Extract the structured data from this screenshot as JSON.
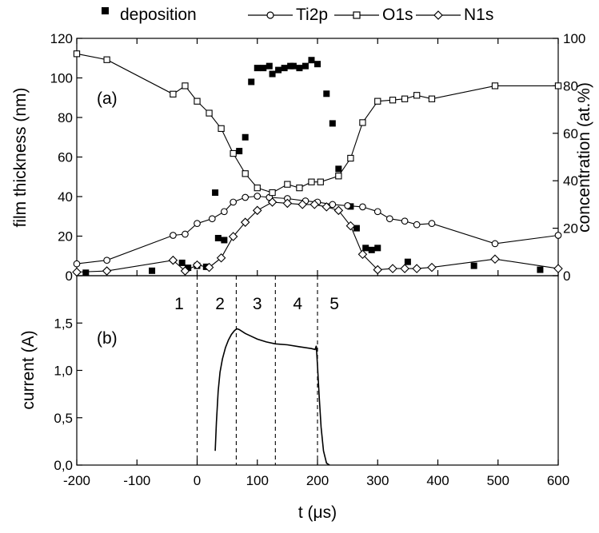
{
  "chart_data": [
    {
      "panel": "(a)",
      "type": "scatter",
      "xlim": [
        -200,
        600
      ],
      "ylim_left": [
        0,
        120
      ],
      "ylim_right": [
        0,
        100
      ],
      "ylabel": "film thickness (nm)",
      "ylabel_right": "concentration (at.%)",
      "left_ticks": [
        0,
        20,
        40,
        60,
        80,
        100,
        120
      ],
      "right_ticks": [
        0,
        20,
        40,
        60,
        80,
        100
      ],
      "legend_position": "top",
      "legend": [
        "deposition",
        "Ti2p",
        "O1s",
        "N1s"
      ],
      "series": [
        {
          "name": "deposition",
          "axis": "left",
          "marker": "square-filled",
          "line": false,
          "points": [
            [
              -185,
              1.5
            ],
            [
              -75,
              2.5
            ],
            [
              -25,
              6.5
            ],
            [
              -15,
              4
            ],
            [
              0,
              5
            ],
            [
              15,
              4.5
            ],
            [
              30,
              42
            ],
            [
              35,
              19
            ],
            [
              45,
              18
            ],
            [
              70,
              63
            ],
            [
              80,
              70
            ],
            [
              90,
              98
            ],
            [
              100,
              105
            ],
            [
              110,
              105
            ],
            [
              120,
              106
            ],
            [
              125,
              102
            ],
            [
              135,
              104
            ],
            [
              145,
              105
            ],
            [
              155,
              106
            ],
            [
              160,
              106
            ],
            [
              170,
              105
            ],
            [
              180,
              106
            ],
            [
              190,
              109
            ],
            [
              200,
              107
            ],
            [
              215,
              92
            ],
            [
              225,
              77
            ],
            [
              235,
              54
            ],
            [
              255,
              35
            ],
            [
              265,
              24
            ],
            [
              280,
              14
            ],
            [
              290,
              13
            ],
            [
              300,
              14
            ],
            [
              350,
              7
            ],
            [
              460,
              5
            ],
            [
              570,
              3
            ]
          ]
        },
        {
          "name": "Ti2p",
          "axis": "right",
          "marker": "circle-open",
          "line": true,
          "points": [
            [
              -200,
              5
            ],
            [
              -150,
              6.5
            ],
            [
              -40,
              17
            ],
            [
              -20,
              17.5
            ],
            [
              0,
              22
            ],
            [
              25,
              24
            ],
            [
              45,
              27
            ],
            [
              60,
              31
            ],
            [
              80,
              33
            ],
            [
              100,
              33.5
            ],
            [
              120,
              33
            ],
            [
              150,
              32.5
            ],
            [
              180,
              31.5
            ],
            [
              200,
              31
            ],
            [
              225,
              30
            ],
            [
              250,
              29.5
            ],
            [
              275,
              29
            ],
            [
              300,
              27
            ],
            [
              320,
              24
            ],
            [
              345,
              23
            ],
            [
              365,
              21.5
            ],
            [
              390,
              22
            ],
            [
              495,
              13.5
            ],
            [
              600,
              17
            ]
          ]
        },
        {
          "name": "O1s",
          "axis": "right",
          "marker": "square-open",
          "line": true,
          "points": [
            [
              -200,
              93.5
            ],
            [
              -150,
              91
            ],
            [
              -40,
              76.5
            ],
            [
              -20,
              80
            ],
            [
              0,
              73.5
            ],
            [
              20,
              68.5
            ],
            [
              40,
              62
            ],
            [
              60,
              51.5
            ],
            [
              80,
              43
            ],
            [
              100,
              37
            ],
            [
              125,
              35
            ],
            [
              150,
              38.5
            ],
            [
              170,
              37
            ],
            [
              190,
              39.5
            ],
            [
              205,
              39.5
            ],
            [
              235,
              42
            ],
            [
              255,
              49.5
            ],
            [
              275,
              64.5
            ],
            [
              300,
              73.5
            ],
            [
              325,
              74
            ],
            [
              345,
              74.5
            ],
            [
              365,
              76
            ],
            [
              390,
              74.5
            ],
            [
              495,
              80
            ],
            [
              600,
              80
            ]
          ]
        },
        {
          "name": "N1s",
          "axis": "right",
          "marker": "diamond-open",
          "line": true,
          "points": [
            [
              -200,
              1.5
            ],
            [
              -150,
              2
            ],
            [
              -40,
              6.5
            ],
            [
              -20,
              2
            ],
            [
              0,
              4.5
            ],
            [
              20,
              3.5
            ],
            [
              40,
              7.5
            ],
            [
              60,
              16.5
            ],
            [
              80,
              22.5
            ],
            [
              100,
              27.5
            ],
            [
              125,
              31
            ],
            [
              150,
              30.5
            ],
            [
              175,
              30
            ],
            [
              195,
              30
            ],
            [
              215,
              29
            ],
            [
              235,
              27.5
            ],
            [
              255,
              21
            ],
            [
              275,
              9
            ],
            [
              300,
              2.5
            ],
            [
              325,
              3
            ],
            [
              345,
              3
            ],
            [
              365,
              3
            ],
            [
              390,
              3.5
            ],
            [
              495,
              7
            ],
            [
              600,
              3
            ]
          ]
        }
      ]
    },
    {
      "panel": "(b)",
      "type": "line",
      "xlim": [
        -200,
        600
      ],
      "ylim": [
        0,
        2.0
      ],
      "ylabel": "current (A)",
      "xlabel": "t (μs)",
      "x_ticks": [
        -200,
        -100,
        0,
        100,
        200,
        300,
        400,
        500,
        600
      ],
      "y_ticks": [
        0,
        0.5,
        1.0,
        1.5
      ],
      "y_tick_labels": [
        "0,0",
        "0,5",
        "1,0",
        "1,5"
      ],
      "series": [
        {
          "name": "current",
          "points": [
            [
              30,
              0.15
            ],
            [
              32,
              0.45
            ],
            [
              35,
              0.78
            ],
            [
              38,
              0.98
            ],
            [
              42,
              1.12
            ],
            [
              47,
              1.24
            ],
            [
              52,
              1.32
            ],
            [
              57,
              1.38
            ],
            [
              62,
              1.42
            ],
            [
              66,
              1.44
            ],
            [
              70,
              1.43
            ],
            [
              80,
              1.39
            ],
            [
              90,
              1.36
            ],
            [
              100,
              1.33
            ],
            [
              115,
              1.3
            ],
            [
              130,
              1.28
            ],
            [
              150,
              1.27
            ],
            [
              170,
              1.25
            ],
            [
              190,
              1.23
            ],
            [
              196,
              1.22
            ],
            [
              198,
              1.26
            ],
            [
              200,
              1.05
            ],
            [
              203,
              0.7
            ],
            [
              206,
              0.4
            ],
            [
              210,
              0.15
            ],
            [
              215,
              0.02
            ],
            [
              220,
              0.0
            ]
          ]
        }
      ],
      "region_lines": [
        0,
        65,
        130,
        200
      ],
      "region_labels": [
        {
          "text": "1",
          "x": -30
        },
        {
          "text": "2",
          "x": 38
        },
        {
          "text": "3",
          "x": 100
        },
        {
          "text": "4",
          "x": 167
        },
        {
          "text": "5",
          "x": 228
        }
      ]
    }
  ]
}
